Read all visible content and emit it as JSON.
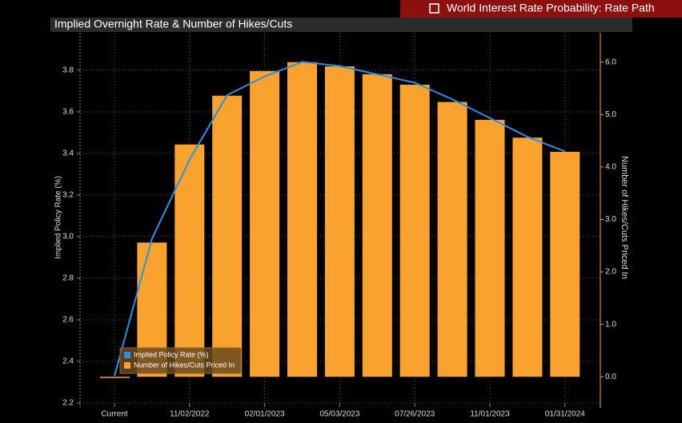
{
  "header": {
    "title": "World Interest Rate Probability: Rate Path"
  },
  "chart_data": {
    "type": "bar-line",
    "title": "Implied Overnight Rate & Number of Hikes/Cuts",
    "ylabel": "Implied Policy Rate (%)",
    "y2label": "Number of Hikes/Cuts Priced In",
    "categories": [
      "Current",
      null,
      "11/02/2022",
      null,
      "02/01/2023",
      null,
      "05/03/2023",
      null,
      "07/26/2023",
      null,
      "11/01/2023",
      null,
      "01/31/2024"
    ],
    "series": [
      {
        "name": "Implied Policy Rate (%)",
        "type": "line",
        "color": "#2a8fe6",
        "axis": "y",
        "values": [
          2.33,
          2.99,
          3.37,
          3.68,
          3.77,
          3.84,
          3.82,
          3.78,
          3.74,
          3.66,
          3.57,
          3.48,
          3.41
        ]
      },
      {
        "name": "Number of Hikes/Cuts Priced In",
        "type": "bar",
        "color": "#f9a32e",
        "axis": "y2",
        "values": [
          0,
          2.56,
          4.43,
          5.36,
          5.83,
          6.0,
          5.92,
          5.77,
          5.57,
          5.24,
          4.9,
          4.56,
          4.29
        ]
      }
    ],
    "ylim": [
      2.2,
      3.98
    ],
    "yticks": [
      2.2,
      2.4,
      2.6,
      2.8,
      {
        "value": 3,
        "label": "3.0"
      },
      3.2,
      3.4,
      3.6,
      3.8
    ],
    "y2lim": [
      -0.5,
      6.56
    ],
    "y2ticks": [
      {
        "value": 0,
        "label": "0.0"
      },
      {
        "value": 1,
        "label": "1.0"
      },
      {
        "value": 2,
        "label": "2.0"
      },
      {
        "value": 3,
        "label": "3.0"
      },
      {
        "value": 4,
        "label": "4.0"
      },
      {
        "value": 5,
        "label": "5.0"
      },
      {
        "value": 6,
        "label": "6.0"
      }
    ],
    "grid": true,
    "legend": "lower left"
  }
}
